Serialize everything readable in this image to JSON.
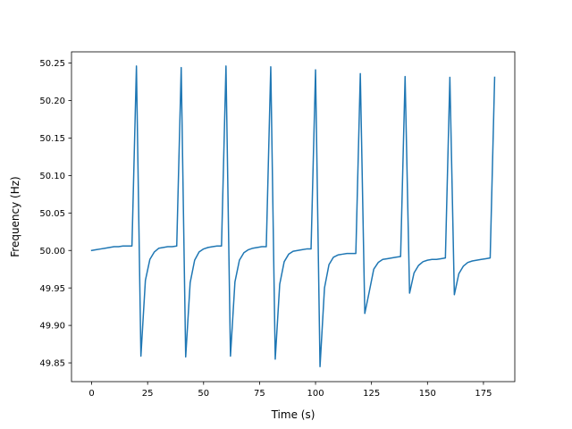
{
  "chart_data": {
    "type": "line",
    "title": "",
    "xlabel": "Time (s)",
    "ylabel": "Frequency (Hz)",
    "xlim": [
      -9,
      189
    ],
    "ylim": [
      49.825,
      50.265
    ],
    "xticks": [
      0,
      25,
      50,
      75,
      100,
      125,
      150,
      175
    ],
    "xtick_labels": [
      "0",
      "25",
      "50",
      "75",
      "100",
      "125",
      "150",
      "175"
    ],
    "yticks": [
      49.85,
      49.9,
      49.95,
      50.0,
      50.05,
      50.1,
      50.15,
      50.2,
      50.25
    ],
    "ytick_labels": [
      "49.85",
      "49.90",
      "49.95",
      "50.00",
      "50.05",
      "50.10",
      "50.15",
      "50.20",
      "50.25"
    ],
    "grid": false,
    "legend": "none",
    "series": [
      {
        "color": "#1f77b4",
        "x": [
          0,
          2,
          4,
          6,
          8,
          10,
          12,
          14,
          16,
          18,
          20,
          22,
          24,
          26,
          28,
          30,
          32,
          34,
          36,
          38,
          40,
          42,
          44,
          46,
          48,
          50,
          52,
          54,
          56,
          58,
          60,
          62,
          64,
          66,
          68,
          70,
          72,
          74,
          76,
          78,
          80,
          82,
          84,
          86,
          88,
          90,
          92,
          94,
          96,
          98,
          100,
          102,
          104,
          106,
          108,
          110,
          112,
          114,
          116,
          118,
          120,
          122,
          124,
          126,
          128,
          130,
          132,
          134,
          136,
          138,
          140,
          142,
          144,
          146,
          148,
          150,
          152,
          154,
          156,
          158,
          160,
          162,
          164,
          166,
          168,
          170,
          172,
          174,
          176,
          178,
          180
        ],
        "y": [
          50.0,
          50.001,
          50.002,
          50.003,
          50.004,
          50.005,
          50.005,
          50.006,
          50.006,
          50.006,
          50.246,
          49.859,
          49.96,
          49.988,
          49.998,
          50.003,
          50.004,
          50.005,
          50.005,
          50.006,
          50.244,
          49.858,
          49.957,
          49.987,
          49.998,
          50.002,
          50.004,
          50.005,
          50.006,
          50.006,
          50.246,
          49.859,
          49.958,
          49.987,
          49.997,
          50.001,
          50.003,
          50.004,
          50.005,
          50.005,
          50.245,
          49.855,
          49.955,
          49.985,
          49.995,
          49.999,
          50.0,
          50.001,
          50.002,
          50.002,
          50.241,
          49.845,
          49.95,
          49.981,
          49.991,
          49.994,
          49.995,
          49.996,
          49.996,
          49.996,
          50.236,
          49.916,
          49.945,
          49.975,
          49.984,
          49.988,
          49.989,
          49.99,
          49.991,
          49.992,
          50.232,
          49.943,
          49.97,
          49.98,
          49.985,
          49.987,
          49.988,
          49.988,
          49.989,
          49.99,
          50.231,
          49.941,
          49.969,
          49.979,
          49.984,
          49.986,
          49.987,
          49.988,
          49.989,
          49.99,
          50.231
        ]
      }
    ]
  }
}
